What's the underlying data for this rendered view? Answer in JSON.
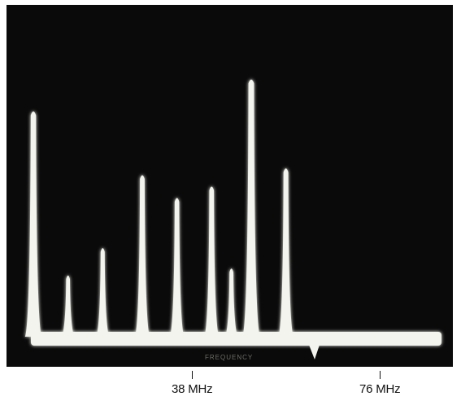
{
  "photo": {
    "subject": "spectrum-analyzer-display",
    "colors": {
      "screen": "#0a0a0a",
      "trace": "#f4f4ee",
      "glow": "#9a9a90"
    },
    "screen_overlay_text": "FREQUENCY",
    "peaks": [
      {
        "freq_mhz": 6,
        "level": 0.98
      },
      {
        "freq_mhz": 13,
        "level": 0.26
      },
      {
        "freq_mhz": 20,
        "level": 0.38
      },
      {
        "freq_mhz": 28,
        "level": 0.7
      },
      {
        "freq_mhz": 35,
        "level": 0.6
      },
      {
        "freq_mhz": 42,
        "level": 0.65
      },
      {
        "freq_mhz": 46,
        "level": 0.29
      },
      {
        "freq_mhz": 50,
        "level": 1.12
      },
      {
        "freq_mhz": 57,
        "level": 0.73
      }
    ]
  },
  "axis": {
    "markers": [
      {
        "label": "38 MHz",
        "value": 38
      },
      {
        "label": "76 MHz",
        "value": 76
      }
    ]
  }
}
